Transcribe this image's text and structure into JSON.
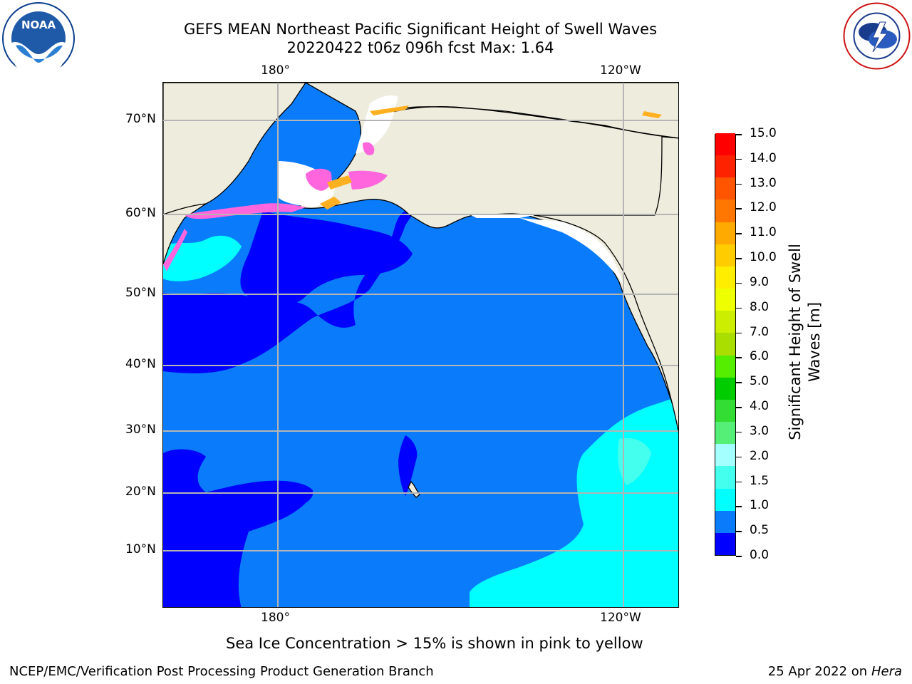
{
  "title": {
    "line1": "GEFS MEAN Northeast Pacific Significant Height of Swell Waves",
    "line2": "20220422 t06z 096h fcst   Max: 1.64"
  },
  "logos": {
    "noaa": {
      "icon": "noaa-logo",
      "text": "NOAA",
      "ring_text": "NATIONAL OCEANIC AND ATMOSPHERIC ADMINISTRATION · U.S. DEPARTMENT OF COMMERCE"
    },
    "nws": {
      "icon": "nws-logo",
      "ring_text": "NATIONAL WEATHER SERVICE"
    }
  },
  "map": {
    "longitude_labels_top": [
      "180°",
      "120°W"
    ],
    "longitude_labels_bottom": [
      "180°",
      "120°W"
    ],
    "latitude_labels": [
      "70°N",
      "60°N",
      "50°N",
      "40°N",
      "30°N",
      "20°N",
      "10°N"
    ],
    "colors": {
      "ocean_main": "#0a7cfb",
      "ocean_low": "#0000ff",
      "ocean_high": "#00ffff",
      "land": "#eeecdc",
      "gridline": "#b4b4b4",
      "sea_ice_pink": "#ff66dd",
      "sea_ice_orange": "#ffb020"
    }
  },
  "colorbar": {
    "label": "Significant Height of Swell Waves [m]",
    "ticks": [
      "15.0",
      "14.0",
      "13.0",
      "12.0",
      "11.0",
      "10.0",
      "9.0",
      "8.0",
      "7.0",
      "6.0",
      "5.0",
      "4.0",
      "3.0",
      "2.0",
      "1.5",
      "1.0",
      "0.5",
      "0.0"
    ],
    "colors": [
      "#0000ff",
      "#0a7cfb",
      "#00ffff",
      "#44ffee",
      "#a4ffff",
      "#55ee77",
      "#33dd33",
      "#00cc00",
      "#55ee00",
      "#aadd00",
      "#ccee00",
      "#eeff00",
      "#ffee00",
      "#ffcc00",
      "#ffaa00",
      "#ff7700",
      "#ff5500",
      "#ff2200",
      "#ff0000"
    ]
  },
  "note": "Sea Ice Concentration > 15% is shown in pink to yellow",
  "footer": {
    "left": "NCEP/EMC/Verification Post Processing Product Generation Branch",
    "right_prefix": "25 Apr 2022 on ",
    "right_machine": "Hera"
  }
}
